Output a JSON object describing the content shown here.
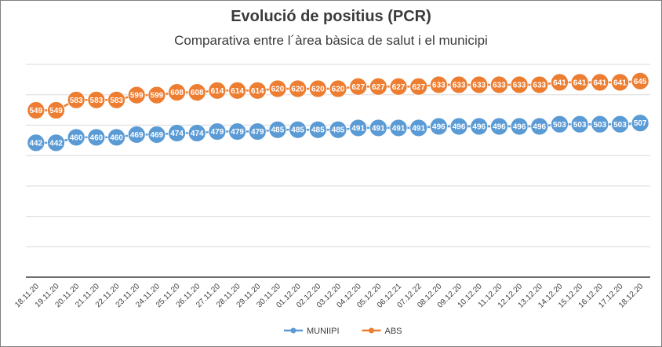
{
  "chart_data": {
    "type": "line",
    "title": "Evolució de positius (PCR)",
    "subtitle": "Comparativa entre l´àrea bàsica de salut i el municipi",
    "categories": [
      "18.11.20",
      "19.11.20",
      "20.11.20",
      "21.11.20",
      "22.11.20",
      "23.11.20",
      "24.11.20",
      "25.11.20",
      "26.11.20",
      "27.11.20",
      "28.11.20",
      "29.11.20",
      "30.11.20",
      "01.12.20",
      "02.12.20",
      "03.12.20",
      "04.12.20",
      "05.12.20",
      "06.12.21",
      "07.12.22",
      "08.12.20",
      "09.12.20",
      "10.12.20",
      "11.12.20",
      "12.12.20",
      "13.12.20",
      "14.12.20",
      "15.12.20",
      "16.12.20",
      "17.12.20",
      "18.12.20"
    ],
    "series": [
      {
        "name": "MUNIIPI",
        "color": "#5b9bd5",
        "values": [
          442,
          442,
          460,
          460,
          460,
          469,
          469,
          474,
          474,
          479,
          479,
          479,
          485,
          485,
          485,
          485,
          491,
          491,
          491,
          491,
          496,
          496,
          496,
          496,
          496,
          496,
          503,
          503,
          503,
          503,
          507
        ]
      },
      {
        "name": "ABS",
        "color": "#ed7d31",
        "values": [
          549,
          549,
          583,
          583,
          583,
          599,
          599,
          608,
          608,
          614,
          614,
          614,
          620,
          620,
          620,
          620,
          627,
          627,
          627,
          627,
          633,
          633,
          633,
          633,
          633,
          633,
          641,
          641,
          641,
          641,
          645
        ]
      }
    ],
    "ylim": [
      0,
      700
    ],
    "grid": true,
    "legend_position": "bottom"
  }
}
